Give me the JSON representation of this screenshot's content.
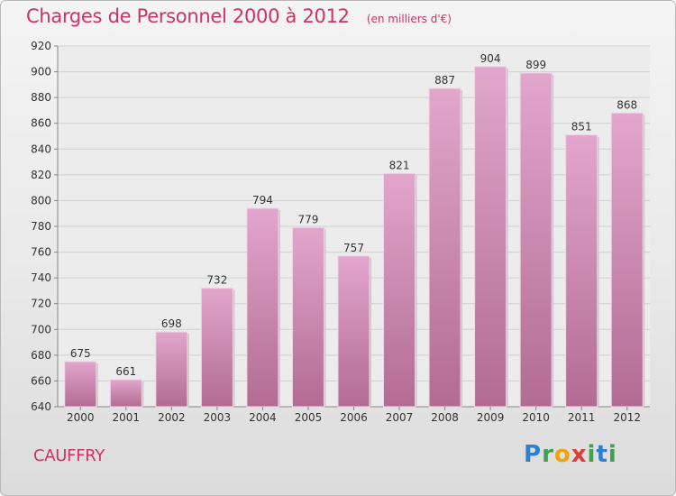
{
  "header": {
    "title": "Charges de Personnel 2000 à 2012",
    "subtitle": "(en milliers d'€)"
  },
  "footer": {
    "commune": "CAUFFRY",
    "logo_text": "Proxiti"
  },
  "colors": {
    "title": "#cc3366",
    "bar_top": "#e2a6cc",
    "bar_bottom": "#b26c93",
    "grid": "#d0d0d0"
  },
  "chart_data": {
    "type": "bar",
    "categories": [
      "2000",
      "2001",
      "2002",
      "2003",
      "2004",
      "2005",
      "2006",
      "2007",
      "2008",
      "2009",
      "2010",
      "2011",
      "2012"
    ],
    "values": [
      675,
      661,
      698,
      732,
      794,
      779,
      757,
      821,
      887,
      904,
      899,
      851,
      868
    ],
    "data_labels": [
      "675",
      "661",
      "698",
      "732",
      "794",
      "779",
      "757",
      "821",
      "887",
      "904",
      "899",
      "851",
      "868"
    ],
    "ylim": [
      640,
      920
    ],
    "yticks": [
      640,
      660,
      680,
      700,
      720,
      740,
      760,
      780,
      800,
      820,
      840,
      860,
      880,
      900,
      920
    ],
    "grid": true,
    "legend": "none"
  }
}
